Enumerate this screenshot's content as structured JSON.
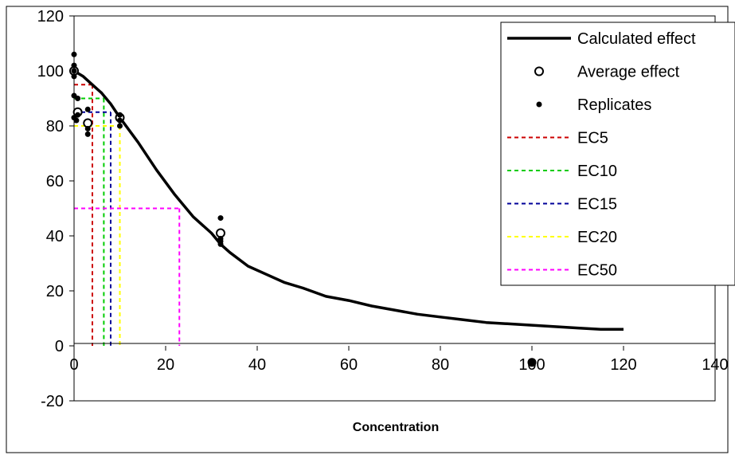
{
  "chart_data": {
    "type": "scatter",
    "title": "",
    "xlabel": "Concentration",
    "ylabel": "",
    "xlim": [
      0,
      140
    ],
    "ylim": [
      -20,
      120
    ],
    "x_ticks": [
      0,
      20,
      40,
      60,
      80,
      100,
      120,
      140
    ],
    "y_ticks": [
      -20,
      0,
      20,
      40,
      60,
      80,
      100,
      120
    ],
    "grid": false,
    "legend_placement": "top-right",
    "series": [
      {
        "name": "Calculated effect",
        "kind": "line",
        "color": "#000000",
        "x": [
          0,
          2,
          4,
          6,
          8,
          10,
          14,
          18,
          22,
          26,
          30,
          32,
          34,
          38,
          42,
          46,
          50,
          55,
          60,
          65,
          70,
          75,
          80,
          85,
          90,
          95,
          100,
          105,
          110,
          115,
          120
        ],
        "y": [
          100,
          98,
          95,
          92,
          88,
          83,
          74,
          64,
          55,
          47,
          41,
          37,
          34,
          29,
          26,
          23,
          21,
          18,
          16.5,
          14.5,
          13,
          11.5,
          10.5,
          9.5,
          8.5,
          8,
          7.5,
          7,
          6.5,
          6,
          6
        ]
      },
      {
        "name": "Average effect",
        "kind": "open-circle",
        "color": "#000000",
        "x": [
          0,
          0.8,
          3,
          10,
          32
        ],
        "y": [
          100,
          85,
          81,
          83,
          41
        ]
      },
      {
        "name": "Replicates",
        "kind": "dot",
        "color": "#000000",
        "x": [
          0,
          0,
          0,
          0,
          0,
          0,
          0.5,
          0.8,
          0.8,
          3,
          3,
          3,
          10,
          10,
          10,
          32,
          32,
          32,
          32,
          100
        ],
        "y": [
          106,
          102,
          98,
          100,
          91,
          83,
          82,
          90,
          84,
          86,
          79,
          77,
          84,
          82,
          80,
          46.5,
          39,
          38,
          37,
          -6
        ]
      }
    ],
    "ec_lines": [
      {
        "name": "EC5",
        "color": "#cc0000",
        "x": 4,
        "y": 95
      },
      {
        "name": "EC10",
        "color": "#00cc00",
        "x": 6.5,
        "y": 90
      },
      {
        "name": "EC15",
        "color": "#000099",
        "x": 8,
        "y": 85
      },
      {
        "name": "EC20",
        "color": "#ffff00",
        "x": 10,
        "y": 80
      },
      {
        "name": "EC50",
        "color": "#ff00ff",
        "x": 23,
        "y": 50
      }
    ]
  }
}
